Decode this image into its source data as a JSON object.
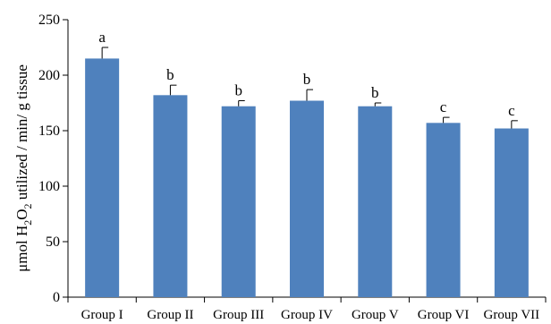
{
  "chart_data": {
    "type": "bar",
    "categories": [
      "Group I",
      "Group II",
      "Group III",
      "Group IV",
      "Group V",
      "Group VI",
      "Group VII"
    ],
    "values": [
      215,
      182,
      172,
      177,
      172,
      157,
      152
    ],
    "errors": [
      10,
      9,
      5,
      10,
      3,
      5,
      7
    ],
    "significance_letters": [
      "a",
      "b",
      "b",
      "b",
      "b",
      "c",
      "c"
    ],
    "ylabel": {
      "part1": "μmol H",
      "sub1": "2",
      "part2": "O",
      "sub2": "2",
      "part3": " utilized / min/ g tissue"
    },
    "xlabel": "",
    "title": "",
    "ylim": [
      0,
      250
    ],
    "yticks": [
      0,
      50,
      100,
      150,
      200,
      250
    ],
    "bar_color": "#4f81bd",
    "grid": false,
    "legend": "none"
  }
}
